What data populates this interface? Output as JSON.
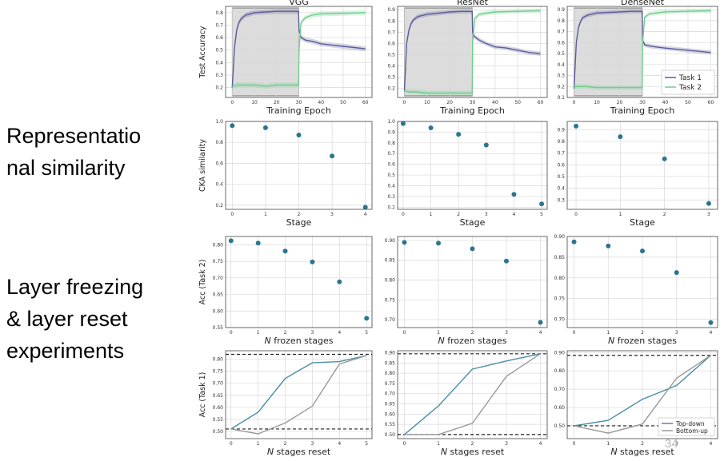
{
  "side_labels": {
    "representational": "Representational similarity",
    "representational_line1": "Representatio",
    "representational_line2": "nal similarity",
    "freezing_line1": "Layer freezing",
    "freezing_line2": "& layer reset",
    "freezing_line3": "experiments"
  },
  "page_number": "34",
  "colors": {
    "task1": "#5b5c99",
    "task2": "#6ccf8a",
    "point": "#2b7590",
    "topdown": "#4a8da5",
    "bottomup": "#999999",
    "grid": "#d9d9d9",
    "shade": "#dcdcdc"
  },
  "chart_data": [
    {
      "id": "acc-vgg",
      "type": "line",
      "title": "VGG",
      "xlabel": "Training Epoch",
      "ylabel": "Test Accuracy",
      "xlim": [
        -3,
        63
      ],
      "ylim": [
        0.12,
        0.85
      ],
      "xticks": [
        0,
        10,
        20,
        30,
        40,
        50,
        60
      ],
      "yticks": [
        0.2,
        0.3,
        0.4,
        0.5,
        0.6,
        0.7,
        0.8
      ],
      "shade_x": [
        0,
        30
      ],
      "series": [
        {
          "name": "Task 1",
          "x": [
            0,
            1,
            2,
            3,
            4,
            6,
            8,
            10,
            15,
            20,
            25,
            29.9,
            30.1,
            31,
            33,
            36,
            40,
            45,
            50,
            55,
            60
          ],
          "y": [
            0.2,
            0.52,
            0.66,
            0.72,
            0.75,
            0.78,
            0.79,
            0.8,
            0.805,
            0.81,
            0.81,
            0.81,
            0.66,
            0.6,
            0.58,
            0.57,
            0.55,
            0.54,
            0.53,
            0.52,
            0.51
          ]
        },
        {
          "name": "Task 2",
          "x": [
            0,
            2,
            5,
            10,
            15,
            20,
            25,
            29.9,
            30.1,
            31,
            33,
            36,
            40,
            50,
            60
          ],
          "y": [
            0.21,
            0.22,
            0.22,
            0.22,
            0.21,
            0.22,
            0.22,
            0.22,
            0.5,
            0.72,
            0.76,
            0.78,
            0.79,
            0.795,
            0.8
          ]
        }
      ]
    },
    {
      "id": "acc-resnet",
      "type": "line",
      "title": "ResNet",
      "xlabel": "Training Epoch",
      "ylabel": "",
      "xlim": [
        -3,
        63
      ],
      "ylim": [
        0.12,
        0.93
      ],
      "xticks": [
        0,
        10,
        20,
        30,
        40,
        50,
        60
      ],
      "yticks": [
        0.2,
        0.3,
        0.4,
        0.5,
        0.6,
        0.7,
        0.8,
        0.9
      ],
      "shade_x": [
        0,
        30
      ],
      "series": [
        {
          "name": "Task 1",
          "x": [
            0,
            1,
            2,
            3,
            4,
            6,
            8,
            10,
            15,
            20,
            25,
            29.9,
            30.1,
            31,
            33,
            36,
            40,
            45,
            50,
            55,
            60
          ],
          "y": [
            0.18,
            0.6,
            0.72,
            0.78,
            0.81,
            0.84,
            0.85,
            0.86,
            0.87,
            0.88,
            0.885,
            0.885,
            0.7,
            0.66,
            0.63,
            0.6,
            0.57,
            0.56,
            0.54,
            0.52,
            0.51
          ]
        },
        {
          "name": "Task 2",
          "x": [
            0,
            2,
            5,
            10,
            15,
            20,
            25,
            29.9,
            30.1,
            31,
            33,
            36,
            40,
            50,
            60
          ],
          "y": [
            0.18,
            0.17,
            0.17,
            0.16,
            0.16,
            0.16,
            0.16,
            0.16,
            0.6,
            0.82,
            0.86,
            0.87,
            0.88,
            0.885,
            0.89
          ]
        }
      ]
    },
    {
      "id": "acc-densenet",
      "type": "line",
      "title": "DenseNet",
      "xlabel": "Training Epoch",
      "ylabel": "",
      "xlim": [
        -3,
        63
      ],
      "ylim": [
        0.1,
        0.93
      ],
      "xticks": [
        0,
        10,
        20,
        30,
        40,
        50,
        60
      ],
      "yticks": [
        0.1,
        0.2,
        0.3,
        0.4,
        0.5,
        0.6,
        0.7,
        0.8,
        0.9
      ],
      "shade_x": [
        0,
        30
      ],
      "legend": [
        "Task 1",
        "Task 2"
      ],
      "series": [
        {
          "name": "Task 1",
          "x": [
            0,
            1,
            2,
            3,
            4,
            6,
            8,
            10,
            15,
            20,
            25,
            29.9,
            30.1,
            31,
            33,
            36,
            40,
            45,
            50,
            55,
            60
          ],
          "y": [
            0.18,
            0.6,
            0.74,
            0.8,
            0.83,
            0.85,
            0.86,
            0.87,
            0.875,
            0.88,
            0.885,
            0.885,
            0.62,
            0.58,
            0.57,
            0.56,
            0.55,
            0.54,
            0.53,
            0.52,
            0.51
          ]
        },
        {
          "name": "Task 2",
          "x": [
            0,
            2,
            5,
            10,
            15,
            20,
            25,
            29.9,
            30.1,
            31,
            33,
            36,
            40,
            50,
            60
          ],
          "y": [
            0.2,
            0.2,
            0.2,
            0.19,
            0.19,
            0.19,
            0.19,
            0.19,
            0.6,
            0.83,
            0.86,
            0.87,
            0.88,
            0.885,
            0.89
          ]
        }
      ]
    },
    {
      "id": "cka-vgg",
      "type": "scatter",
      "xlabel": "Stage",
      "ylabel": "CKA similarity",
      "xlim": [
        -0.2,
        4.2
      ],
      "ylim": [
        0.16,
        1.0
      ],
      "xticks": [
        0,
        1,
        2,
        3,
        4
      ],
      "yticks": [
        0.2,
        0.4,
        0.6,
        0.8,
        1.0
      ],
      "x": [
        0,
        1,
        2,
        3,
        4
      ],
      "y": [
        0.96,
        0.94,
        0.87,
        0.67,
        0.18
      ]
    },
    {
      "id": "cka-resnet",
      "type": "scatter",
      "xlabel": "Stage",
      "ylabel": "",
      "xlim": [
        -0.2,
        5.2
      ],
      "ylim": [
        0.18,
        1.0
      ],
      "xticks": [
        0,
        1,
        2,
        3,
        4,
        5
      ],
      "yticks": [
        0.2,
        0.3,
        0.4,
        0.5,
        0.6,
        0.7,
        0.8,
        0.9,
        1.0
      ],
      "x": [
        0,
        1,
        2,
        3,
        4,
        5
      ],
      "y": [
        0.98,
        0.94,
        0.88,
        0.78,
        0.32,
        0.23
      ]
    },
    {
      "id": "cka-densenet",
      "type": "scatter",
      "xlabel": "Stage",
      "ylabel": "",
      "xlim": [
        -0.2,
        3.2
      ],
      "ylim": [
        0.22,
        0.97
      ],
      "xticks": [
        0,
        1,
        2,
        3
      ],
      "yticks": [
        0.3,
        0.4,
        0.5,
        0.6,
        0.7,
        0.8,
        0.9
      ],
      "x": [
        0,
        1,
        2,
        3
      ],
      "y": [
        0.93,
        0.84,
        0.65,
        0.27
      ]
    },
    {
      "id": "freeze-vgg",
      "type": "scatter",
      "xlabel": "N frozen stages",
      "ylabel": "Acc (Task 2)",
      "xlim": [
        -0.2,
        5.2
      ],
      "ylim": [
        0.55,
        0.825
      ],
      "xticks": [
        0,
        1,
        2,
        3,
        4,
        5
      ],
      "yticks": [
        0.55,
        0.6,
        0.65,
        0.7,
        0.75,
        0.8
      ],
      "x": [
        0,
        1,
        2,
        3,
        4,
        5
      ],
      "y": [
        0.812,
        0.805,
        0.781,
        0.748,
        0.688,
        0.578
      ]
    },
    {
      "id": "freeze-resnet",
      "type": "scatter",
      "xlabel": "N frozen stages",
      "ylabel": "",
      "xlim": [
        -0.2,
        4.2
      ],
      "ylim": [
        0.68,
        0.91
      ],
      "xticks": [
        0,
        1,
        2,
        3,
        4
      ],
      "yticks": [
        0.7,
        0.75,
        0.8,
        0.85,
        0.9
      ],
      "x": [
        0,
        1,
        2,
        3,
        4
      ],
      "y": [
        0.895,
        0.893,
        0.879,
        0.848,
        0.693
      ]
    },
    {
      "id": "freeze-densenet",
      "type": "scatter",
      "xlabel": "N frozen stages",
      "ylabel": "",
      "xlim": [
        -0.2,
        4.2
      ],
      "ylim": [
        0.68,
        0.9
      ],
      "xticks": [
        0,
        1,
        2,
        3,
        4
      ],
      "yticks": [
        0.7,
        0.75,
        0.8,
        0.85,
        0.9
      ],
      "x": [
        0,
        1,
        2,
        3,
        4
      ],
      "y": [
        0.887,
        0.877,
        0.865,
        0.813,
        0.692
      ]
    },
    {
      "id": "reset-vgg",
      "type": "line",
      "xlabel": "N stages reset",
      "ylabel": "Acc (Task 1)",
      "xlim": [
        -0.2,
        5.2
      ],
      "ylim": [
        0.47,
        0.835
      ],
      "xticks": [
        0,
        1,
        2,
        3,
        4,
        5
      ],
      "yticks": [
        0.5,
        0.55,
        0.6,
        0.65,
        0.7,
        0.75,
        0.8
      ],
      "hlines": [
        0.51,
        0.82
      ],
      "series": [
        {
          "name": "Top-down",
          "x": [
            0,
            1,
            2,
            3,
            4,
            5
          ],
          "y": [
            0.51,
            0.58,
            0.72,
            0.785,
            0.79,
            0.815
          ]
        },
        {
          "name": "Bottom-up",
          "x": [
            0,
            1,
            2,
            3,
            4,
            5
          ],
          "y": [
            0.51,
            0.49,
            0.535,
            0.605,
            0.78,
            0.815
          ]
        }
      ]
    },
    {
      "id": "reset-resnet",
      "type": "line",
      "xlabel": "N stages reset",
      "ylabel": "",
      "xlim": [
        -0.2,
        4.2
      ],
      "ylim": [
        0.48,
        0.91
      ],
      "xticks": [
        0,
        1,
        2,
        3,
        4
      ],
      "yticks": [
        0.5,
        0.55,
        0.6,
        0.65,
        0.7,
        0.75,
        0.8,
        0.85,
        0.9
      ],
      "hlines": [
        0.5,
        0.895
      ],
      "series": [
        {
          "name": "Top-down",
          "x": [
            0,
            1,
            2,
            3,
            4
          ],
          "y": [
            0.5,
            0.64,
            0.82,
            0.86,
            0.895
          ]
        },
        {
          "name": "Bottom-up",
          "x": [
            0,
            1,
            2,
            3,
            4
          ],
          "y": [
            0.5,
            0.5,
            0.555,
            0.785,
            0.895
          ]
        }
      ]
    },
    {
      "id": "reset-densenet",
      "type": "line",
      "xlabel": "N stages reset",
      "ylabel": "",
      "xlim": [
        -0.2,
        4.2
      ],
      "ylim": [
        0.43,
        0.91
      ],
      "xticks": [
        0,
        1,
        2,
        3,
        4
      ],
      "yticks": [
        0.5,
        0.6,
        0.7,
        0.8,
        0.9
      ],
      "hlines": [
        0.5,
        0.885
      ],
      "legend": [
        "Top-down",
        "Bottom-up"
      ],
      "series": [
        {
          "name": "Top-down",
          "x": [
            0,
            1,
            2,
            3,
            4
          ],
          "y": [
            0.5,
            0.53,
            0.645,
            0.72,
            0.885
          ]
        },
        {
          "name": "Bottom-up",
          "x": [
            0,
            1,
            2,
            3,
            4
          ],
          "y": [
            0.5,
            0.46,
            0.51,
            0.76,
            0.885
          ]
        }
      ]
    }
  ]
}
